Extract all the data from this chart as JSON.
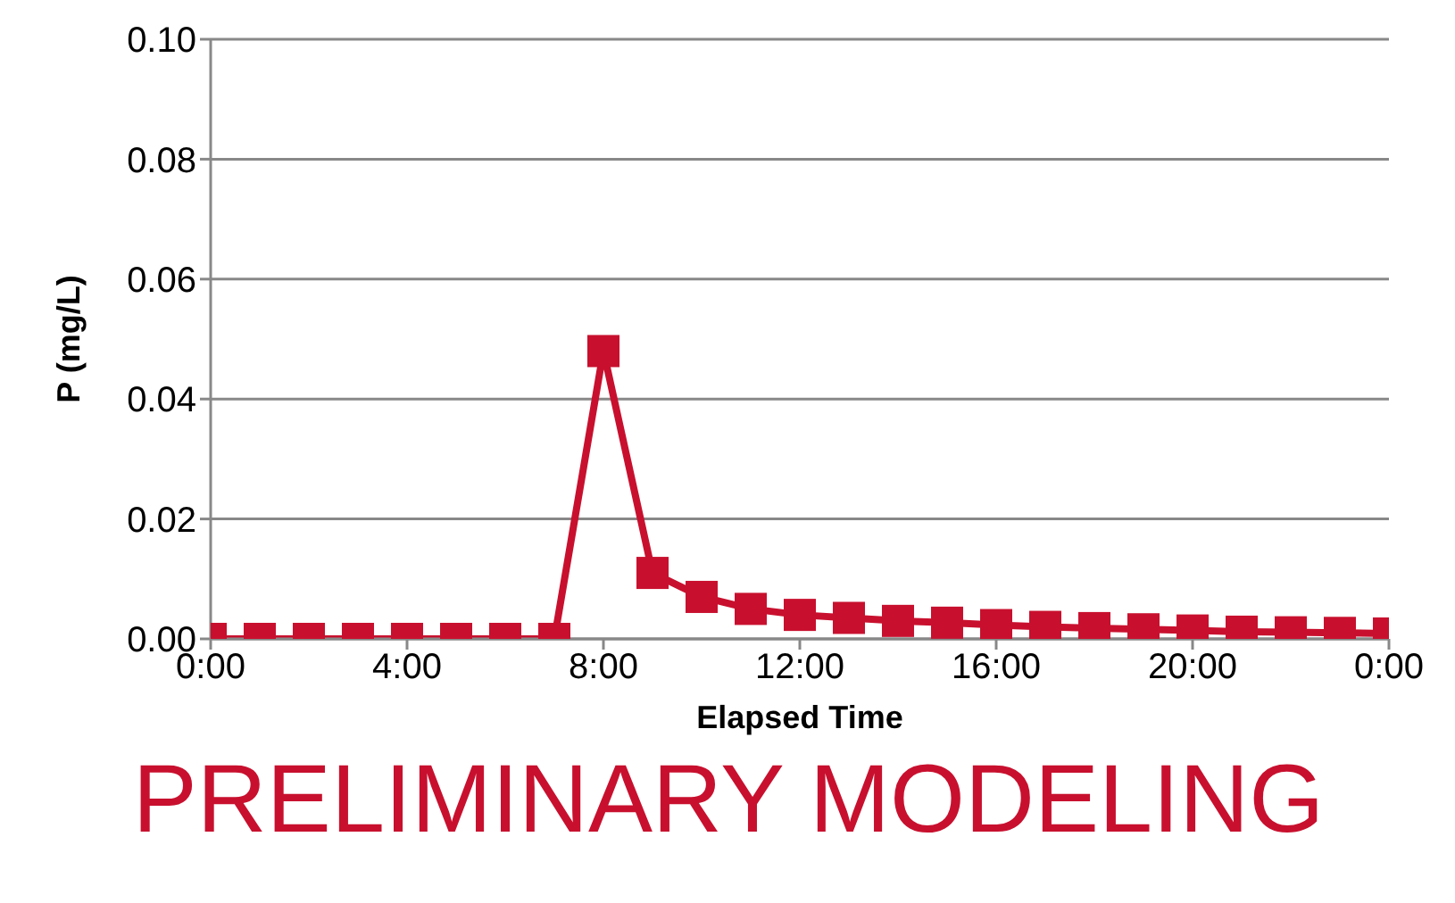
{
  "chart_data": {
    "type": "line",
    "xlabel": "Elapsed Time",
    "ylabel": "P (mg/L)",
    "x": [
      0,
      1,
      2,
      3,
      4,
      5,
      6,
      7,
      8,
      9,
      10,
      11,
      12,
      13,
      14,
      15,
      16,
      17,
      18,
      19,
      20,
      21,
      22,
      23,
      24
    ],
    "series": [
      {
        "color": "#c8102e",
        "values": [
          0,
          0,
          0,
          0,
          0,
          0,
          0,
          0,
          0.048,
          0.011,
          0.007,
          0.005,
          0.004,
          0.0035,
          0.003,
          0.0027,
          0.0023,
          0.002,
          0.0018,
          0.0016,
          0.0014,
          0.0012,
          0.0011,
          0.001,
          0.0009
        ]
      }
    ],
    "xlim": [
      0,
      24
    ],
    "xticks": [
      {
        "value": 0,
        "label": "0:00"
      },
      {
        "value": 4,
        "label": "4:00"
      },
      {
        "value": 8,
        "label": "8:00"
      },
      {
        "value": 12,
        "label": "12:00"
      },
      {
        "value": 16,
        "label": "16:00"
      },
      {
        "value": 20,
        "label": "20:00"
      },
      {
        "value": 24,
        "label": "0:00"
      }
    ],
    "ylim": [
      0,
      0.1
    ],
    "yticks": [
      {
        "value": 0,
        "label": "0.00"
      },
      {
        "value": 0.02,
        "label": "0.02"
      },
      {
        "value": 0.04,
        "label": "0.04"
      },
      {
        "value": 0.06,
        "label": "0.06"
      },
      {
        "value": 0.08,
        "label": "0.08"
      },
      {
        "value": 0.1,
        "label": "0.10"
      }
    ],
    "grid": "y",
    "marker": "square",
    "line_style": "solid",
    "legend": false,
    "annotations": [
      "PRELIMINARY MODELING"
    ]
  }
}
